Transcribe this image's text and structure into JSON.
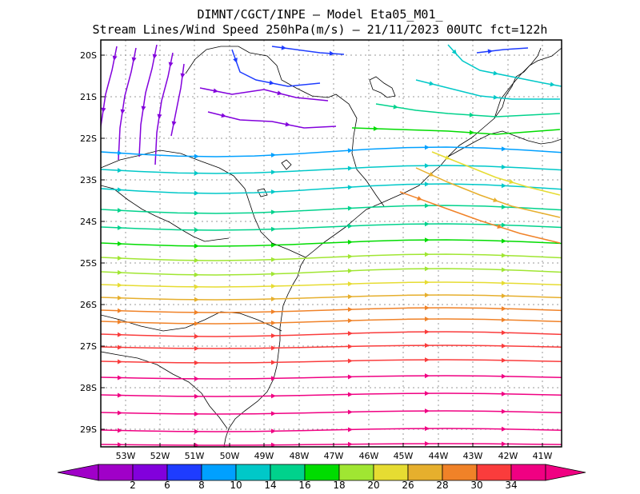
{
  "title": {
    "line1": "DIMNT/CGCT/INPE —  Model Eta05_M01_",
    "line2": "Stream Lines/Wind Speed 250hPa(m/s) —  21/11/2023 00UTC fct=122h"
  },
  "lat_labels": [
    "20S",
    "21S",
    "22S",
    "23S",
    "24S",
    "25S",
    "26S",
    "27S",
    "28S",
    "29S"
  ],
  "lon_labels": [
    "53W",
    "52W",
    "51W",
    "50W",
    "49W",
    "48W",
    "47W",
    "46W",
    "45W",
    "44W",
    "43W",
    "42W",
    "41W"
  ],
  "colorbar": {
    "labels": [
      "2",
      "6",
      "8",
      "10",
      "14",
      "16",
      "18",
      "20",
      "26",
      "28",
      "30",
      "34"
    ],
    "colors": [
      "#a000c8",
      "#8200dc",
      "#1e3cff",
      "#00a0ff",
      "#00c8c8",
      "#00d28c",
      "#00dc00",
      "#a0e632",
      "#e6dc32",
      "#e6af2d",
      "#f08228",
      "#fa3c3c",
      "#f00082"
    ]
  },
  "chart_data": {
    "type": "streamline map",
    "variable": "Stream Lines/Wind Speed 250hPa(m/s)",
    "lat_range": [
      -29.4,
      -19.9
    ],
    "lon_range": [
      -53.6,
      -40.7
    ],
    "speed_levels": [
      2,
      6,
      8,
      10,
      14,
      16,
      18,
      20,
      26,
      28,
      30,
      34
    ],
    "grid": true
  }
}
